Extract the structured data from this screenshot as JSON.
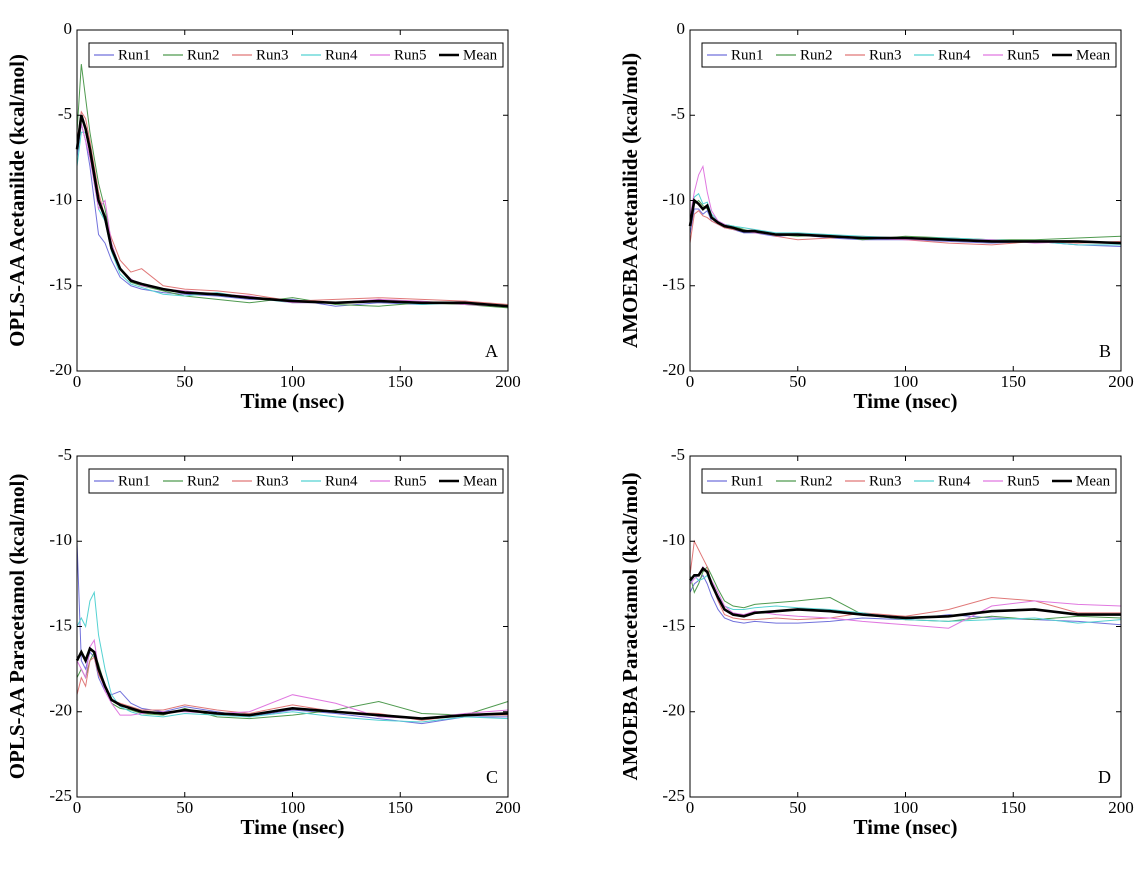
{
  "chart_data": [
    {
      "type": "line",
      "ylabel": "OPLS-AA Acetanilide (kcal/mol)",
      "xlabel": "Time (nsec)",
      "annotation": "A",
      "x": [
        0,
        2,
        4,
        6,
        8,
        10,
        13,
        16,
        20,
        25,
        30,
        40,
        50,
        65,
        80,
        100,
        120,
        140,
        160,
        180,
        200
      ],
      "xlim": [
        0,
        200
      ],
      "xticks": [
        0,
        50,
        100,
        150,
        200
      ],
      "ylim": [
        -20,
        0
      ],
      "yticks": [
        -20,
        -15,
        -10,
        -5,
        0
      ],
      "legend": "top",
      "series": [
        {
          "name": "Run1",
          "color": "#7272dc",
          "values": [
            -7.5,
            -5.5,
            -6.5,
            -8,
            -10,
            -12,
            -12.5,
            -13.5,
            -14.5,
            -15,
            -15.2,
            -15.4,
            -15.5,
            -15.6,
            -15.8,
            -15.8,
            -16.2,
            -16,
            -16.1,
            -15.9,
            -16.2
          ]
        },
        {
          "name": "Run2",
          "color": "#4f9a4f",
          "values": [
            -6,
            -2,
            -4,
            -6,
            -7.5,
            -9,
            -10.5,
            -12.5,
            -14,
            -14.8,
            -15,
            -15.3,
            -15.6,
            -15.8,
            -16,
            -15.7,
            -16.1,
            -16.2,
            -16,
            -16.1,
            -16.3
          ]
        },
        {
          "name": "Run3",
          "color": "#e07878",
          "values": [
            -6.5,
            -4.8,
            -5.2,
            -6.5,
            -8,
            -9.5,
            -11,
            -12.2,
            -13.5,
            -14.2,
            -14,
            -15,
            -15.2,
            -15.3,
            -15.5,
            -15.9,
            -15.8,
            -15.7,
            -15.8,
            -15.9,
            -16.1
          ]
        },
        {
          "name": "Run4",
          "color": "#55d2d2",
          "values": [
            -8,
            -6,
            -6,
            -7.2,
            -9,
            -10.5,
            -11.2,
            -13,
            -14.3,
            -14.9,
            -15.1,
            -15.5,
            -15.6,
            -15.4,
            -15.7,
            -16,
            -16,
            -15.9,
            -16.1,
            -16,
            -16.2
          ]
        },
        {
          "name": "Run5",
          "color": "#e078e0",
          "values": [
            -7,
            -5.5,
            -6.5,
            -7.5,
            -9,
            -10.5,
            -10,
            -12.5,
            -14,
            -14.6,
            -15,
            -15.2,
            -15.3,
            -15.5,
            -15.6,
            -16,
            -16,
            -15.8,
            -15.9,
            -16.1,
            -16.2
          ]
        },
        {
          "name": "Mean",
          "color": "#000000",
          "values": [
            -7,
            -5,
            -5.8,
            -7,
            -8.5,
            -10,
            -11,
            -12.8,
            -14,
            -14.7,
            -14.9,
            -15.2,
            -15.4,
            -15.5,
            -15.7,
            -15.9,
            -16,
            -15.9,
            -16,
            -16,
            -16.2
          ]
        }
      ]
    },
    {
      "type": "line",
      "ylabel": "AMOEBA Acetanilide (kcal/mol)",
      "xlabel": "Time (nsec)",
      "annotation": "B",
      "x": [
        0,
        2,
        4,
        6,
        8,
        10,
        13,
        16,
        20,
        25,
        30,
        40,
        50,
        65,
        80,
        100,
        120,
        140,
        160,
        180,
        200
      ],
      "xlim": [
        0,
        200
      ],
      "xticks": [
        0,
        50,
        100,
        150,
        200
      ],
      "ylim": [
        -20,
        0
      ],
      "yticks": [
        -20,
        -15,
        -10,
        -5,
        0
      ],
      "legend": "top",
      "series": [
        {
          "name": "Run1",
          "color": "#7272dc",
          "values": [
            -12,
            -10.5,
            -10.5,
            -10.8,
            -10.6,
            -11.2,
            -11.4,
            -11.6,
            -11.7,
            -11.9,
            -11.9,
            -12.1,
            -12,
            -12.2,
            -12.3,
            -12.3,
            -12.4,
            -12.5,
            -12.4,
            -12.6,
            -12.7
          ]
        },
        {
          "name": "Run2",
          "color": "#4f9a4f",
          "values": [
            -11.5,
            -10.2,
            -10,
            -10.3,
            -10.5,
            -11,
            -11.3,
            -11.4,
            -11.5,
            -11.7,
            -11.9,
            -12,
            -12.1,
            -12,
            -12.3,
            -12.1,
            -12.2,
            -12.3,
            -12.3,
            -12.2,
            -12.1
          ]
        },
        {
          "name": "Run3",
          "color": "#e07878",
          "values": [
            -12.5,
            -10.8,
            -10.6,
            -10.9,
            -11,
            -11.2,
            -11.4,
            -11.6,
            -11.7,
            -11.8,
            -11.7,
            -12.1,
            -12.3,
            -12.2,
            -12.1,
            -12.3,
            -12.5,
            -12.6,
            -12.4,
            -12.5,
            -12.4
          ]
        },
        {
          "name": "Run4",
          "color": "#55d2d2",
          "values": [
            -11,
            -9.8,
            -9.6,
            -10.2,
            -10.1,
            -10.8,
            -11.2,
            -11.4,
            -11.5,
            -11.6,
            -11.7,
            -11.9,
            -11.9,
            -12,
            -12.1,
            -12.2,
            -12.2,
            -12.3,
            -12.4,
            -12.6,
            -12.6
          ]
        },
        {
          "name": "Run5",
          "color": "#e078e0",
          "values": [
            -11,
            -9.5,
            -8.5,
            -8,
            -9.5,
            -10.6,
            -11.2,
            -11.4,
            -11.6,
            -11.8,
            -11.9,
            -12,
            -12,
            -12.1,
            -12.2,
            -12.3,
            -12.3,
            -12.3,
            -12.5,
            -12.4,
            -12.5
          ]
        },
        {
          "name": "Mean",
          "color": "#000000",
          "values": [
            -11.5,
            -10,
            -10.2,
            -10.5,
            -10.3,
            -11,
            -11.3,
            -11.5,
            -11.6,
            -11.8,
            -11.8,
            -12,
            -12,
            -12.1,
            -12.2,
            -12.2,
            -12.3,
            -12.4,
            -12.4,
            -12.4,
            -12.5
          ]
        }
      ]
    },
    {
      "type": "line",
      "ylabel": "OPLS-AA Paracetamol (kcal/mol)",
      "xlabel": "Time (nsec)",
      "annotation": "C",
      "x": [
        0,
        2,
        4,
        6,
        8,
        10,
        13,
        16,
        20,
        25,
        30,
        40,
        50,
        65,
        80,
        100,
        120,
        140,
        160,
        180,
        200
      ],
      "xlim": [
        0,
        200
      ],
      "xticks": [
        0,
        50,
        100,
        150,
        200
      ],
      "ylim": [
        -25,
        -5
      ],
      "yticks": [
        -25,
        -20,
        -15,
        -10,
        -5
      ],
      "legend": "top",
      "series": [
        {
          "name": "Run1",
          "color": "#7272dc",
          "values": [
            -10,
            -17,
            -17.5,
            -16.5,
            -16.8,
            -18,
            -18.8,
            -19,
            -18.8,
            -19.5,
            -19.8,
            -20,
            -19.7,
            -20,
            -20.3,
            -19.9,
            -20.1,
            -20.4,
            -20.7,
            -20.3,
            -20.3
          ]
        },
        {
          "name": "Run2",
          "color": "#4f9a4f",
          "values": [
            -18,
            -17.5,
            -18,
            -17,
            -16.5,
            -17.2,
            -18.5,
            -19.5,
            -19.8,
            -19.9,
            -20.1,
            -20.2,
            -19.8,
            -20.3,
            -20.4,
            -20.2,
            -19.9,
            -19.4,
            -20.1,
            -20.2,
            -19.4
          ]
        },
        {
          "name": "Run3",
          "color": "#e07878",
          "values": [
            -19,
            -18,
            -18.5,
            -17,
            -16.8,
            -17.8,
            -18.6,
            -19.3,
            -19.5,
            -19.7,
            -19.9,
            -19.9,
            -19.6,
            -19.9,
            -20.1,
            -19.6,
            -20,
            -20.1,
            -20.5,
            -20.2,
            -20.2
          ]
        },
        {
          "name": "Run4",
          "color": "#55d2d2",
          "values": [
            -15,
            -14.5,
            -15,
            -13.5,
            -13,
            -15.5,
            -17.5,
            -19,
            -19.7,
            -20,
            -20.2,
            -20.3,
            -20.1,
            -20.2,
            -20.3,
            -20,
            -20.3,
            -20.5,
            -20.6,
            -20.3,
            -20.4
          ]
        },
        {
          "name": "Run5",
          "color": "#e078e0",
          "values": [
            -17,
            -17.5,
            -18,
            -16.2,
            -15.8,
            -17.5,
            -18.8,
            -19.5,
            -20.2,
            -20.2,
            -20.1,
            -20,
            -20,
            -20.1,
            -20,
            -19,
            -19.5,
            -20.3,
            -20.4,
            -20.1,
            -19.9
          ]
        },
        {
          "name": "Mean",
          "color": "#000000",
          "values": [
            -17,
            -16.5,
            -17,
            -16.3,
            -16.5,
            -17.5,
            -18.5,
            -19.3,
            -19.6,
            -19.8,
            -20,
            -20.1,
            -19.9,
            -20.1,
            -20.2,
            -19.8,
            -20,
            -20.2,
            -20.4,
            -20.2,
            -20.1
          ]
        }
      ]
    },
    {
      "type": "line",
      "ylabel": "AMOEBA Paracetamol (kcal/mol)",
      "xlabel": "Time (nsec)",
      "annotation": "D",
      "x": [
        0,
        2,
        4,
        6,
        8,
        10,
        13,
        16,
        20,
        25,
        30,
        40,
        50,
        65,
        80,
        100,
        120,
        140,
        160,
        180,
        200
      ],
      "xlim": [
        0,
        200
      ],
      "xticks": [
        0,
        50,
        100,
        150,
        200
      ],
      "ylim": [
        -25,
        -5
      ],
      "yticks": [
        -25,
        -20,
        -15,
        -10,
        -5
      ],
      "legend": "top",
      "series": [
        {
          "name": "Run1",
          "color": "#7272dc",
          "values": [
            -13,
            -12.5,
            -12.3,
            -12,
            -12.5,
            -13.2,
            -14,
            -14.5,
            -14.7,
            -14.8,
            -14.7,
            -14.8,
            -14.8,
            -14.7,
            -14.5,
            -14.6,
            -14.3,
            -14.5,
            -14.6,
            -14.7,
            -14.9
          ]
        },
        {
          "name": "Run2",
          "color": "#4f9a4f",
          "values": [
            -12,
            -13,
            -12.5,
            -11.8,
            -11.5,
            -12,
            -12.8,
            -13.5,
            -13.8,
            -13.9,
            -13.7,
            -13.6,
            -13.5,
            -13.3,
            -14.3,
            -14.6,
            -14.7,
            -14.4,
            -14.6,
            -14.4,
            -14.5
          ]
        },
        {
          "name": "Run3",
          "color": "#e07878",
          "values": [
            -12,
            -10,
            -10.5,
            -11,
            -11.5,
            -12.5,
            -13.5,
            -14.3,
            -14.5,
            -14.6,
            -14.6,
            -14.5,
            -14.6,
            -14.5,
            -14.2,
            -14.4,
            -14,
            -13.3,
            -13.5,
            -14.2,
            -14.2
          ]
        },
        {
          "name": "Run4",
          "color": "#55d2d2",
          "values": [
            -12.5,
            -12,
            -12.3,
            -12.2,
            -12,
            -12.6,
            -13.2,
            -13.8,
            -14,
            -14,
            -13.9,
            -13.8,
            -13.9,
            -14,
            -14.2,
            -14.6,
            -14.7,
            -14.6,
            -14.5,
            -14.8,
            -14.6
          ]
        },
        {
          "name": "Run5",
          "color": "#e078e0",
          "values": [
            -12.5,
            -12.2,
            -12,
            -11.5,
            -11.8,
            -12.3,
            -13,
            -13.8,
            -14.2,
            -14.3,
            -14.1,
            -14.3,
            -14.4,
            -14.5,
            -14.7,
            -14.9,
            -15.1,
            -13.8,
            -13.5,
            -13.7,
            -13.8
          ]
        },
        {
          "name": "Mean",
          "color": "#000000",
          "values": [
            -12.3,
            -12,
            -12,
            -11.6,
            -11.8,
            -12.5,
            -13.3,
            -14,
            -14.3,
            -14.4,
            -14.2,
            -14.1,
            -14,
            -14.1,
            -14.3,
            -14.5,
            -14.4,
            -14.1,
            -14,
            -14.3,
            -14.3
          ]
        }
      ]
    }
  ]
}
